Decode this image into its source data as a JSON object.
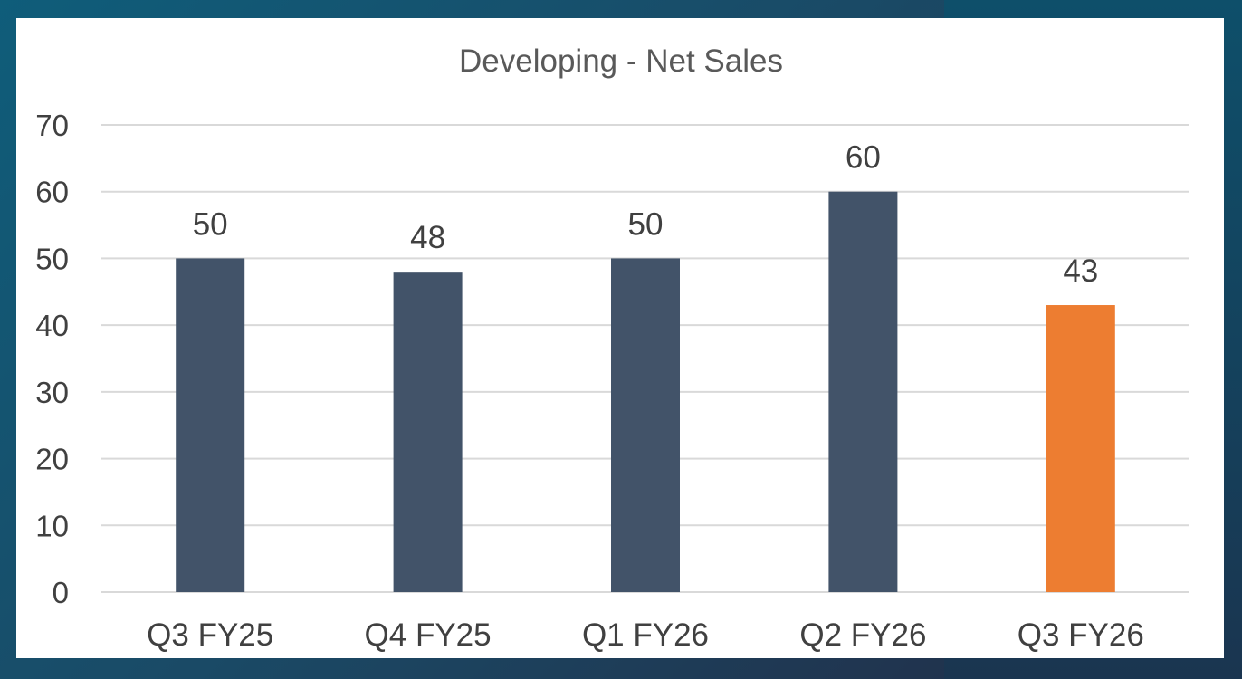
{
  "chart_data": {
    "type": "bar",
    "title": "Developing - Net Sales",
    "categories": [
      "Q3 FY25",
      "Q4 FY25",
      "Q1 FY26",
      "Q2 FY26",
      "Q3 FY26"
    ],
    "values": [
      50,
      48,
      50,
      60,
      43
    ],
    "data_labels": [
      "50",
      "48",
      "50",
      "60",
      "43"
    ],
    "xlabel": "",
    "ylabel": "",
    "ylim": [
      0,
      70
    ],
    "y_ticks": [
      0,
      10,
      20,
      30,
      40,
      50,
      60,
      70
    ],
    "grid": true,
    "legend": "none",
    "colors": {
      "default_bar": "#425369",
      "highlight_bar": "#ed7d31",
      "highlight_index": 4,
      "gridline": "#d9d9d9",
      "text": "#404040",
      "title": "#595959"
    }
  }
}
